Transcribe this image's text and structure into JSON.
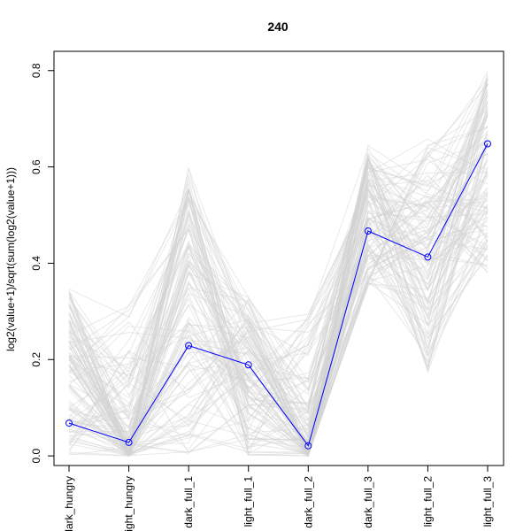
{
  "chart_data": {
    "type": "line",
    "title": "240",
    "xlabel": "",
    "ylabel": "log2(value+1)/sqrt(sum(log2(value+1)))",
    "categories": [
      "dark_hungry",
      "light_hungry",
      "dark_full_1",
      "light_full_1",
      "dark_full_2",
      "dark_full_3",
      "light_full_2",
      "light_full_3"
    ],
    "ylim": [
      -0.02,
      0.84
    ],
    "yticks": [
      0.0,
      0.2,
      0.4,
      0.6,
      0.8
    ],
    "grid": false,
    "highlight_series": {
      "color": "#0000ff",
      "marker": "open-circle",
      "values": [
        0.068,
        0.028,
        0.229,
        0.189,
        0.021,
        0.467,
        0.413,
        0.648
      ]
    },
    "background_series": {
      "color": "#d3d3d3",
      "count": 120,
      "ranges": [
        [
          0.0,
          0.35
        ],
        [
          0.0,
          0.32
        ],
        [
          0.0,
          0.6
        ],
        [
          0.0,
          0.33
        ],
        [
          0.0,
          0.31
        ],
        [
          0.35,
          0.65
        ],
        [
          0.17,
          0.66
        ],
        [
          0.38,
          0.8
        ]
      ]
    }
  }
}
